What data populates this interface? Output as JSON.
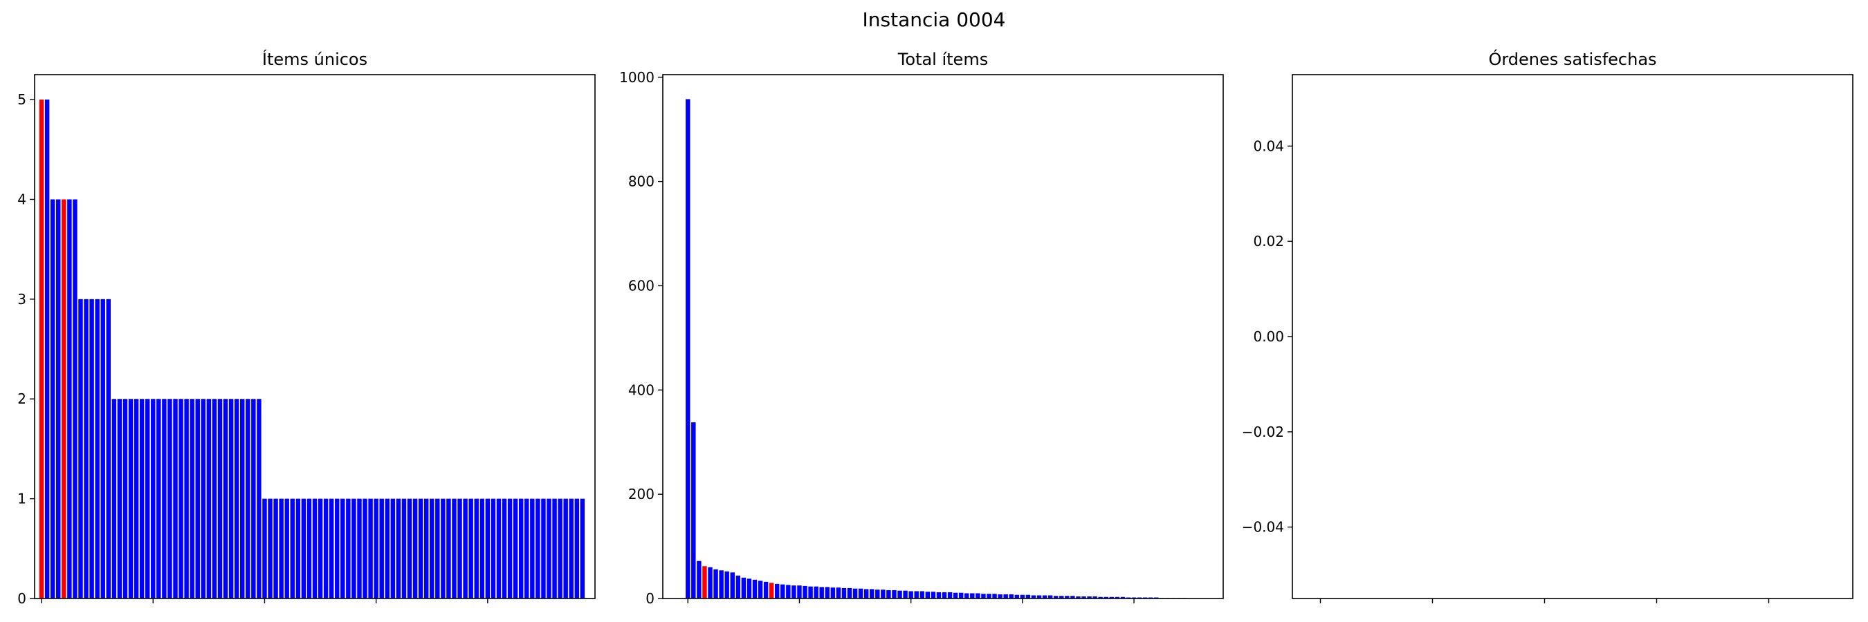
{
  "figure": {
    "title": "Instancia 0004"
  },
  "chart_data": [
    {
      "type": "bar",
      "title": "Ítems únicos",
      "xlabel": "",
      "ylabel": "",
      "ylim": [
        0,
        5.25
      ],
      "yticks": [
        0,
        1,
        2,
        3,
        4,
        5
      ],
      "xlim": [
        -1.25,
        99.25
      ],
      "xticks": [
        0,
        20,
        40,
        60,
        80
      ],
      "x_tick_labels_shown": false,
      "grid": false,
      "colors": {
        "default": "#0000ff",
        "highlight": "#ff0000"
      },
      "highlight_indices": [
        0,
        4
      ],
      "values": [
        5,
        5,
        4,
        4,
        4,
        4,
        4,
        3,
        3,
        3,
        3,
        3,
        3,
        2,
        2,
        2,
        2,
        2,
        2,
        2,
        2,
        2,
        2,
        2,
        2,
        2,
        2,
        2,
        2,
        2,
        2,
        2,
        2,
        2,
        2,
        2,
        2,
        2,
        2,
        2,
        1,
        1,
        1,
        1,
        1,
        1,
        1,
        1,
        1,
        1,
        1,
        1,
        1,
        1,
        1,
        1,
        1,
        1,
        1,
        1,
        1,
        1,
        1,
        1,
        1,
        1,
        1,
        1,
        1,
        1,
        1,
        1,
        1,
        1,
        1,
        1,
        1,
        1,
        1,
        1,
        1,
        1,
        1,
        1,
        1,
        1,
        1,
        1,
        1,
        1,
        1,
        1,
        1,
        1,
        1,
        1,
        1,
        1
      ]
    },
    {
      "type": "bar",
      "title": "Total ítems",
      "xlabel": "",
      "ylabel": "",
      "ylim": [
        0,
        1005
      ],
      "yticks": [
        0,
        200,
        400,
        600,
        800,
        1000
      ],
      "xlim": [
        -4.5,
        96
      ],
      "xticks": [
        0,
        20,
        40,
        60,
        80
      ],
      "x_tick_labels_shown": false,
      "grid": false,
      "colors": {
        "default": "#0000ff",
        "highlight": "#ff0000"
      },
      "highlight_indices": [
        3,
        15
      ],
      "values": [
        958,
        338,
        72,
        62,
        60,
        56,
        54,
        52,
        50,
        44,
        40,
        38,
        36,
        34,
        32,
        30,
        28,
        27,
        26,
        25,
        25,
        24,
        23,
        23,
        22,
        22,
        21,
        21,
        20,
        20,
        19,
        19,
        18,
        18,
        17,
        17,
        16,
        16,
        15,
        15,
        14,
        14,
        14,
        13,
        13,
        12,
        12,
        12,
        11,
        11,
        10,
        10,
        10,
        9,
        9,
        9,
        8,
        8,
        8,
        7,
        7,
        7,
        6,
        6,
        6,
        6,
        5,
        5,
        5,
        5,
        4,
        4,
        4,
        4,
        3,
        3,
        3,
        3,
        3,
        2,
        2,
        2,
        2,
        2,
        2,
        1,
        1,
        1,
        1,
        1
      ]
    },
    {
      "type": "bar",
      "title": "Órdenes satisfechas",
      "xlabel": "",
      "ylabel": "",
      "ylim": [
        -0.055,
        0.055
      ],
      "yticks": [
        -0.04,
        -0.02,
        0.0,
        0.02,
        0.04
      ],
      "ytick_labels": [
        "−0.04",
        "−0.02",
        "0.00",
        "0.02",
        "0.04"
      ],
      "xlim": [
        -5,
        95
      ],
      "xticks": [
        0,
        20,
        40,
        60,
        80
      ],
      "x_tick_labels_shown": false,
      "grid": false,
      "values": []
    }
  ]
}
